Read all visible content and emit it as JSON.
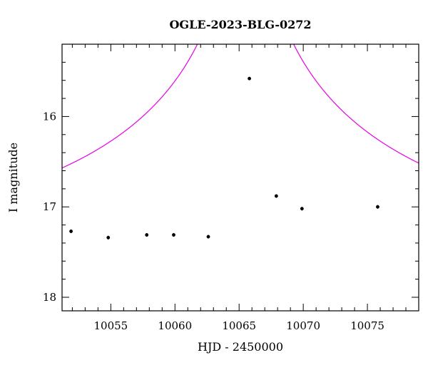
{
  "chart_data": {
    "type": "scatter",
    "title": "OGLE-2023-BLG-0272",
    "xlabel": "HJD - 2450000",
    "ylabel": "I magnitude",
    "xlim": [
      10051.2,
      10079.0
    ],
    "ylim": [
      15.2,
      18.15
    ],
    "y_inverted": true,
    "x_ticks": [
      10055,
      10060,
      10065,
      10070,
      10075
    ],
    "y_ticks": [
      16,
      17,
      18
    ],
    "grid": false,
    "legend": "none",
    "series": [
      {
        "kind": "points",
        "color": "#000000",
        "points": [
          {
            "x": 10051.9,
            "y": 17.27,
            "err": 0.02
          },
          {
            "x": 10054.8,
            "y": 17.34,
            "err": 0.02
          },
          {
            "x": 10057.8,
            "y": 17.31,
            "err": 0.02
          },
          {
            "x": 10059.9,
            "y": 17.31,
            "err": 0.02
          },
          {
            "x": 10062.6,
            "y": 17.33,
            "err": 0.02
          },
          {
            "x": 10065.8,
            "y": 15.58,
            "err": 0.01
          },
          {
            "x": 10067.9,
            "y": 16.88,
            "err": 0.02
          },
          {
            "x": 10069.9,
            "y": 17.02,
            "err": 0.02
          },
          {
            "x": 10075.8,
            "y": 17.0,
            "err": 0.02
          }
        ]
      },
      {
        "kind": "model",
        "color": "#e600e6",
        "model": {
          "t0": 10065.5,
          "tE": 30.0,
          "u0": 0.011,
          "baseline": 17.46
        }
      }
    ]
  }
}
